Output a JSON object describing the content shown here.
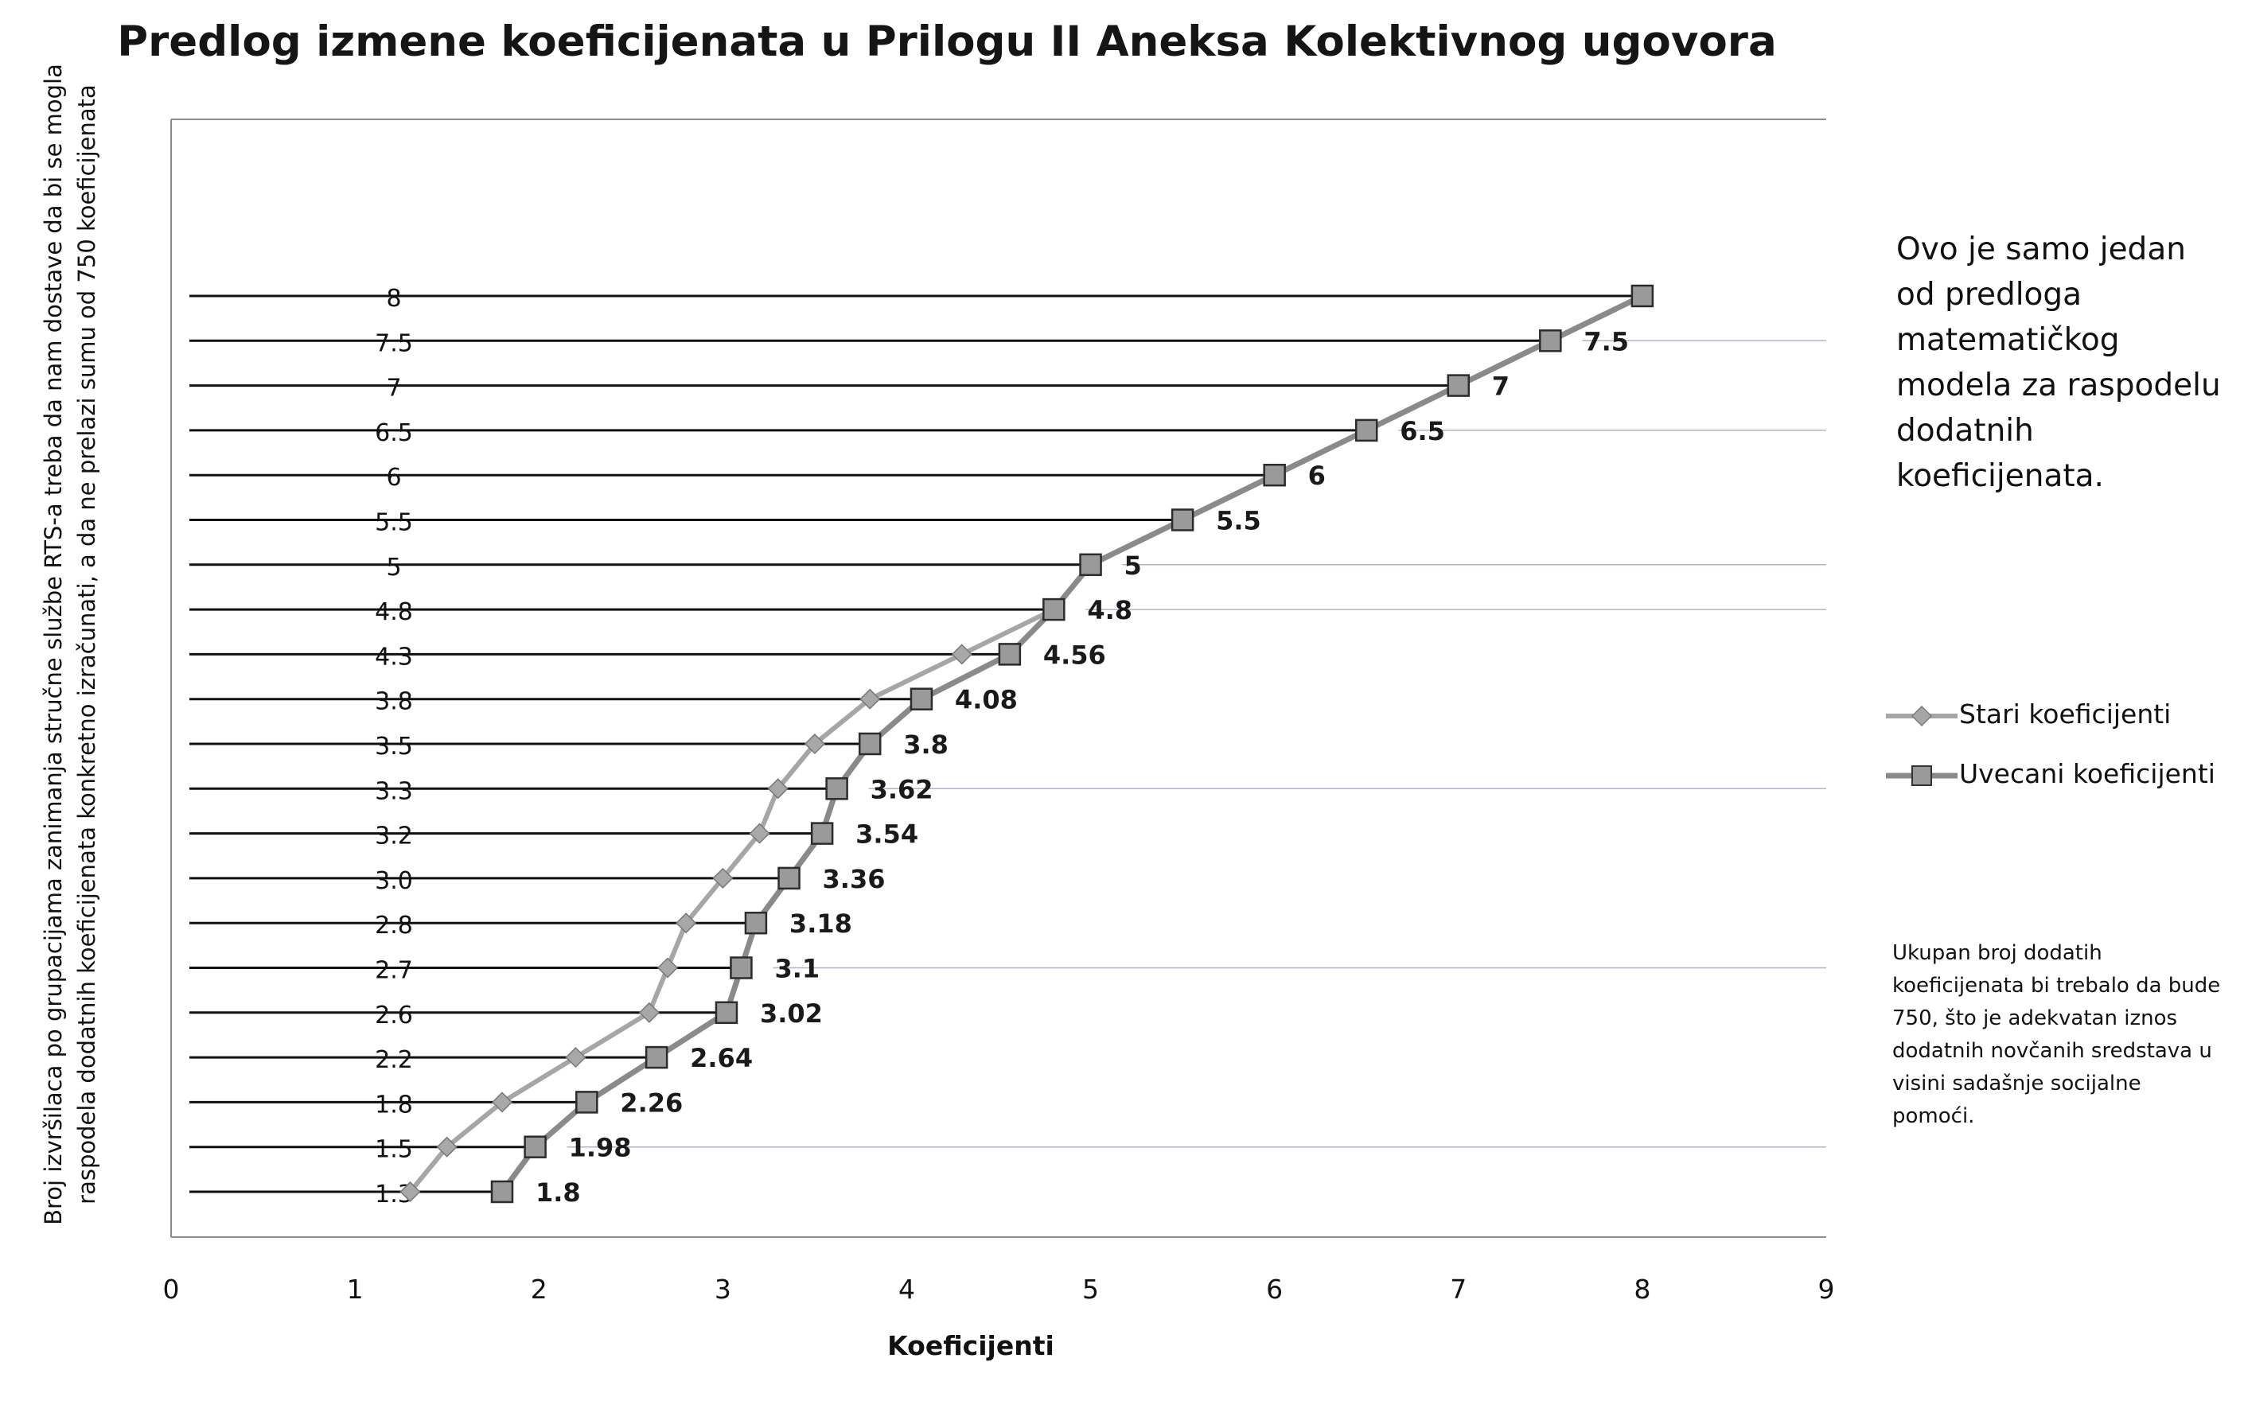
{
  "chart_data": {
    "type": "line",
    "title": "Predlog izmene koeficijenata u Prilogu II Aneksa Kolektivnog ugovora",
    "xlabel": "Koeficijenti",
    "ylabel": "Broj izvršilaca po grupacijama zanimanja stručne službe RTS-a treba da nam dostave da bi se mogla\nraspodela dodatnih koeficijenata konkretno izračunati, a da ne prelazi sumu od 750 koeficijenata",
    "xlim": [
      0,
      9
    ],
    "xticks": [
      "0",
      "1",
      "2",
      "3",
      "4",
      "5",
      "6",
      "7",
      "8",
      "9"
    ],
    "categories": [
      "1.3",
      "1.5",
      "1.8",
      "2.2",
      "2.6",
      "2.7",
      "2.8",
      "3.0",
      "3.2",
      "3.3",
      "3.5",
      "3.8",
      "4.3",
      "4.8",
      "5",
      "5.5",
      "6",
      "6.5",
      "7",
      "7.5",
      "8"
    ],
    "series": [
      {
        "name": "Stari koeficijenti",
        "color": "#a6a6a6",
        "marker": "diamond",
        "values": [
          1.3,
          1.5,
          1.8,
          2.2,
          2.6,
          2.7,
          2.8,
          3.0,
          3.2,
          3.3,
          3.5,
          3.8,
          4.3,
          4.8,
          5,
          5.5,
          6,
          6.5,
          7,
          7.5,
          8
        ]
      },
      {
        "name": "Uvecani koeficijenti",
        "color": "#8a8a8a",
        "marker": "square",
        "values": [
          1.8,
          1.98,
          2.26,
          2.64,
          3.02,
          3.1,
          3.18,
          3.36,
          3.54,
          3.62,
          3.8,
          4.08,
          4.56,
          4.8,
          5,
          5.5,
          6,
          6.5,
          7,
          7.5,
          8
        ],
        "labels": [
          "1.8",
          "1.98",
          "2.26",
          "2.64",
          "3.02",
          "3.1",
          "3.18",
          "3.36",
          "3.54",
          "3.62",
          "3.8",
          "4.08",
          "4.56",
          "4.8",
          "5",
          "5.5",
          "6",
          "6.5",
          "7",
          "7.5",
          ""
        ]
      }
    ],
    "legend": "right"
  },
  "notes": {
    "model": "Ovo je samo jedan od predloga matematičkog modela za raspodelu dodatnih koeficijenata.",
    "total": "Ukupan broj dodatih koeficijenata bi trebalo da bude 750, što je adekvatan iznos dodatnih novčanih sredstava u visini sadašnje socijalne pomoći."
  }
}
